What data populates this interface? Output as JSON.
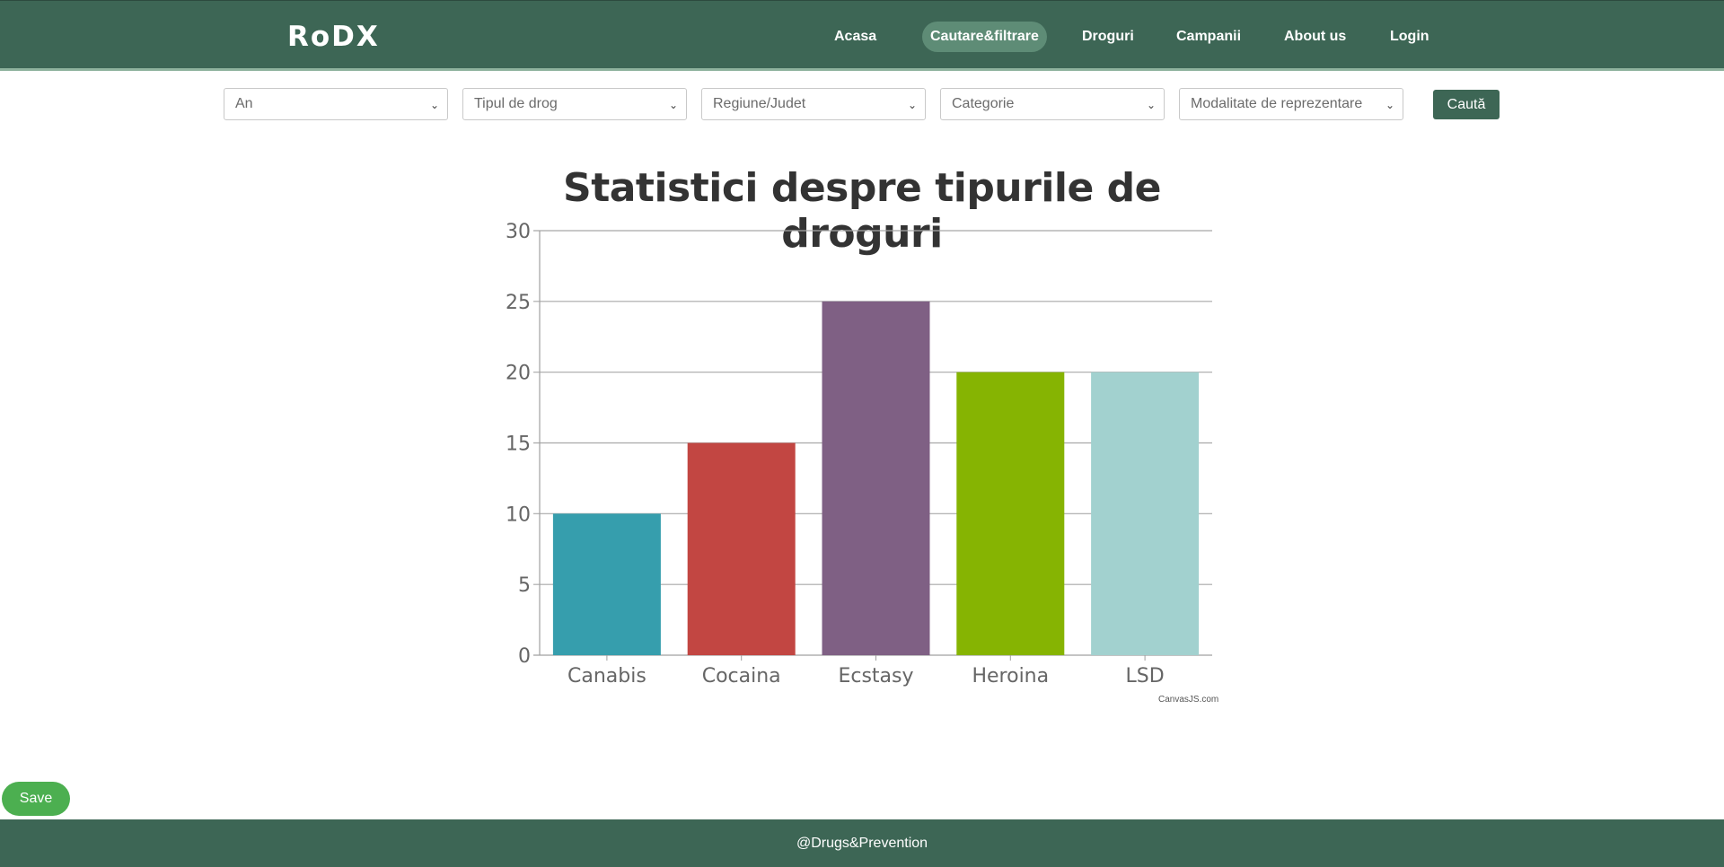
{
  "header": {
    "logo": "RoDX",
    "nav": [
      {
        "label": "Acasa",
        "active": false
      },
      {
        "label": "Cautare&filtrare",
        "active": true
      },
      {
        "label": "Droguri",
        "active": false
      },
      {
        "label": "Campanii",
        "active": false
      },
      {
        "label": "About us",
        "active": false
      },
      {
        "label": "Login",
        "active": false
      }
    ]
  },
  "filters": {
    "selects": [
      {
        "selected": "An"
      },
      {
        "selected": "Tipul de drog"
      },
      {
        "selected": "Regiune/Judet"
      },
      {
        "selected": "Categorie"
      },
      {
        "selected": "Modalitate de reprezentare"
      }
    ],
    "search_label": "Caută"
  },
  "chart_data": {
    "type": "bar",
    "title": "Statistici despre tipurile de droguri",
    "xlabel": "",
    "ylabel": "",
    "categories": [
      "Canabis",
      "Cocaina",
      "Ecstasy",
      "Heroina",
      "LSD"
    ],
    "values": [
      10,
      15,
      25,
      20,
      20
    ],
    "colors": [
      "#369ead",
      "#c24642",
      "#7f6084",
      "#86b402",
      "#a2d1cf"
    ],
    "ylim": [
      0,
      30
    ],
    "yticks": [
      0,
      5,
      10,
      15,
      20,
      25,
      30
    ],
    "grid": true,
    "legend": "none",
    "credit": "CanvasJS.com"
  },
  "save_label": "Save",
  "footer": {
    "text": "@Drugs&Prevention"
  }
}
